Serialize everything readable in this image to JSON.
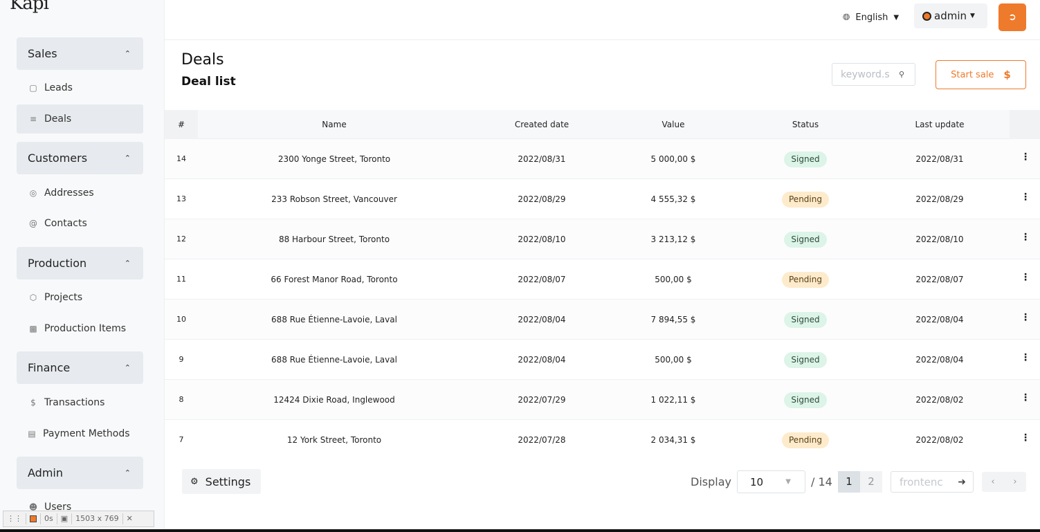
{
  "app": {
    "logo": "Kapi"
  },
  "sidebar": {
    "sections": [
      {
        "label": "Sales",
        "items": [
          {
            "label": "Leads",
            "icon": "document-icon"
          },
          {
            "label": "Deals",
            "icon": "list-icon",
            "active": true
          }
        ]
      },
      {
        "label": "Customers",
        "items": [
          {
            "label": "Addresses",
            "icon": "location-pin-icon"
          },
          {
            "label": "Contacts",
            "icon": "at-icon"
          }
        ]
      },
      {
        "label": "Production",
        "items": [
          {
            "label": "Projects",
            "icon": "cube-icon"
          },
          {
            "label": "Production Items",
            "icon": "truck-icon"
          }
        ]
      },
      {
        "label": "Finance",
        "items": [
          {
            "label": "Transactions",
            "icon": "dollar-icon"
          },
          {
            "label": "Payment Methods",
            "icon": "card-icon"
          }
        ]
      },
      {
        "label": "Admin",
        "items": [
          {
            "label": "Users",
            "icon": "users-icon"
          }
        ]
      }
    ]
  },
  "topbar": {
    "language": "English",
    "user": "admin"
  },
  "page": {
    "title": "Deals",
    "subtitle": "Deal list",
    "search_placeholder": "keyword.s",
    "start_sale_label": "Start sale",
    "start_sale_symbol": "$"
  },
  "table": {
    "columns": [
      "#",
      "Name",
      "Created date",
      "Value",
      "Status",
      "Last update"
    ],
    "rows": [
      {
        "id": "14",
        "name": "2300 Yonge Street, Toronto",
        "created": "2022/08/31",
        "value": "5 000,00 $",
        "status": "Signed",
        "updated": "2022/08/31"
      },
      {
        "id": "13",
        "name": "233 Robson Street, Vancouver",
        "created": "2022/08/29",
        "value": "4 555,32 $",
        "status": "Pending",
        "updated": "2022/08/29"
      },
      {
        "id": "12",
        "name": "88 Harbour Street, Toronto",
        "created": "2022/08/10",
        "value": "3 213,12 $",
        "status": "Signed",
        "updated": "2022/08/10"
      },
      {
        "id": "11",
        "name": "66 Forest Manor Road, Toronto",
        "created": "2022/08/07",
        "value": "500,00 $",
        "status": "Pending",
        "updated": "2022/08/07"
      },
      {
        "id": "10",
        "name": "688 Rue Étienne-Lavoie, Laval",
        "created": "2022/08/04",
        "value": "7 894,55 $",
        "status": "Signed",
        "updated": "2022/08/04"
      },
      {
        "id": "9",
        "name": "688 Rue Étienne-Lavoie, Laval",
        "created": "2022/08/04",
        "value": "500,00 $",
        "status": "Signed",
        "updated": "2022/08/04"
      },
      {
        "id": "8",
        "name": "12424 Dixie Road, Inglewood",
        "created": "2022/07/29",
        "value": "1 022,11 $",
        "status": "Signed",
        "updated": "2022/08/02"
      },
      {
        "id": "7",
        "name": "12 York Street, Toronto",
        "created": "2022/07/28",
        "value": "2 034,31 $",
        "status": "Pending",
        "updated": "2022/08/02"
      }
    ]
  },
  "footer": {
    "settings_label": "Settings",
    "display_label": "Display",
    "page_size": "10",
    "total_label": "/ 14",
    "pages": [
      "1",
      "2"
    ],
    "current_page": "1",
    "goto_placeholder": "frontenc"
  },
  "recorder": {
    "timer": "0s",
    "dimensions": "1503 x 769"
  },
  "colors": {
    "accent": "#ee7a2b",
    "signed_bg": "#ddf4e8",
    "pending_bg": "#fdebcc",
    "sidebar_active": "#e7ebef"
  }
}
